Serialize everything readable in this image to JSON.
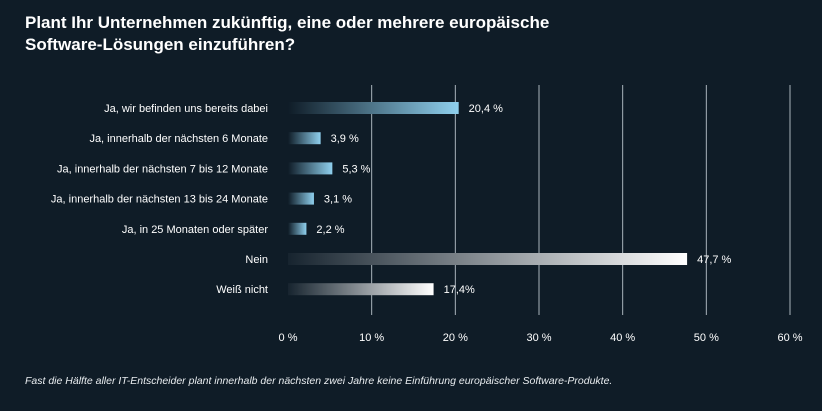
{
  "title_line1": "Plant Ihr Unternehmen zukünftig, eine oder mehrere europäische",
  "title_line2": "Software-Lösungen einzuführen?",
  "footnote": "Fast die Hälfte aller IT-Entscheider plant innerhalb der nächsten zwei Jahre keine Einführung europäischer Software-Produkte.",
  "colors": {
    "background": "#0f1c27",
    "bar_blue_light": "#8fd0ee",
    "bar_white": "#ffffff",
    "gridline": "#a9b3bb"
  },
  "chart_data": {
    "type": "bar",
    "orientation": "horizontal",
    "title": "Plant Ihr Unternehmen zukünftig, eine oder mehrere europäische Software-Lösungen einzuführen?",
    "xlabel": "",
    "ylabel": "",
    "xlim": [
      0,
      60
    ],
    "grid": true,
    "ticks": [
      0,
      10,
      20,
      30,
      40,
      50,
      60
    ],
    "tick_labels": [
      "0 %",
      "10 %",
      "20 %",
      "30 %",
      "40 %",
      "50 %",
      "60 %"
    ],
    "categories": [
      "Ja, wir befinden uns bereits dabei",
      "Ja, innerhalb der nächsten 6 Monate",
      "Ja, innerhalb der nächsten 7 bis 12 Monate",
      "Ja, innerhalb der nächsten 13 bis 24 Monate",
      "Ja, in 25 Monaten oder später",
      "Nein",
      "Weiß nicht"
    ],
    "values": [
      20.4,
      3.9,
      5.3,
      3.1,
      2.2,
      47.7,
      17.4
    ],
    "value_labels": [
      "20,4 %",
      "3,9 %",
      "5,3 %",
      "3,1 %",
      "2,2 %",
      "47,7 %",
      "17,4%"
    ],
    "bar_color_groups": [
      "blue",
      "blue",
      "blue",
      "blue",
      "blue",
      "white",
      "white"
    ]
  }
}
